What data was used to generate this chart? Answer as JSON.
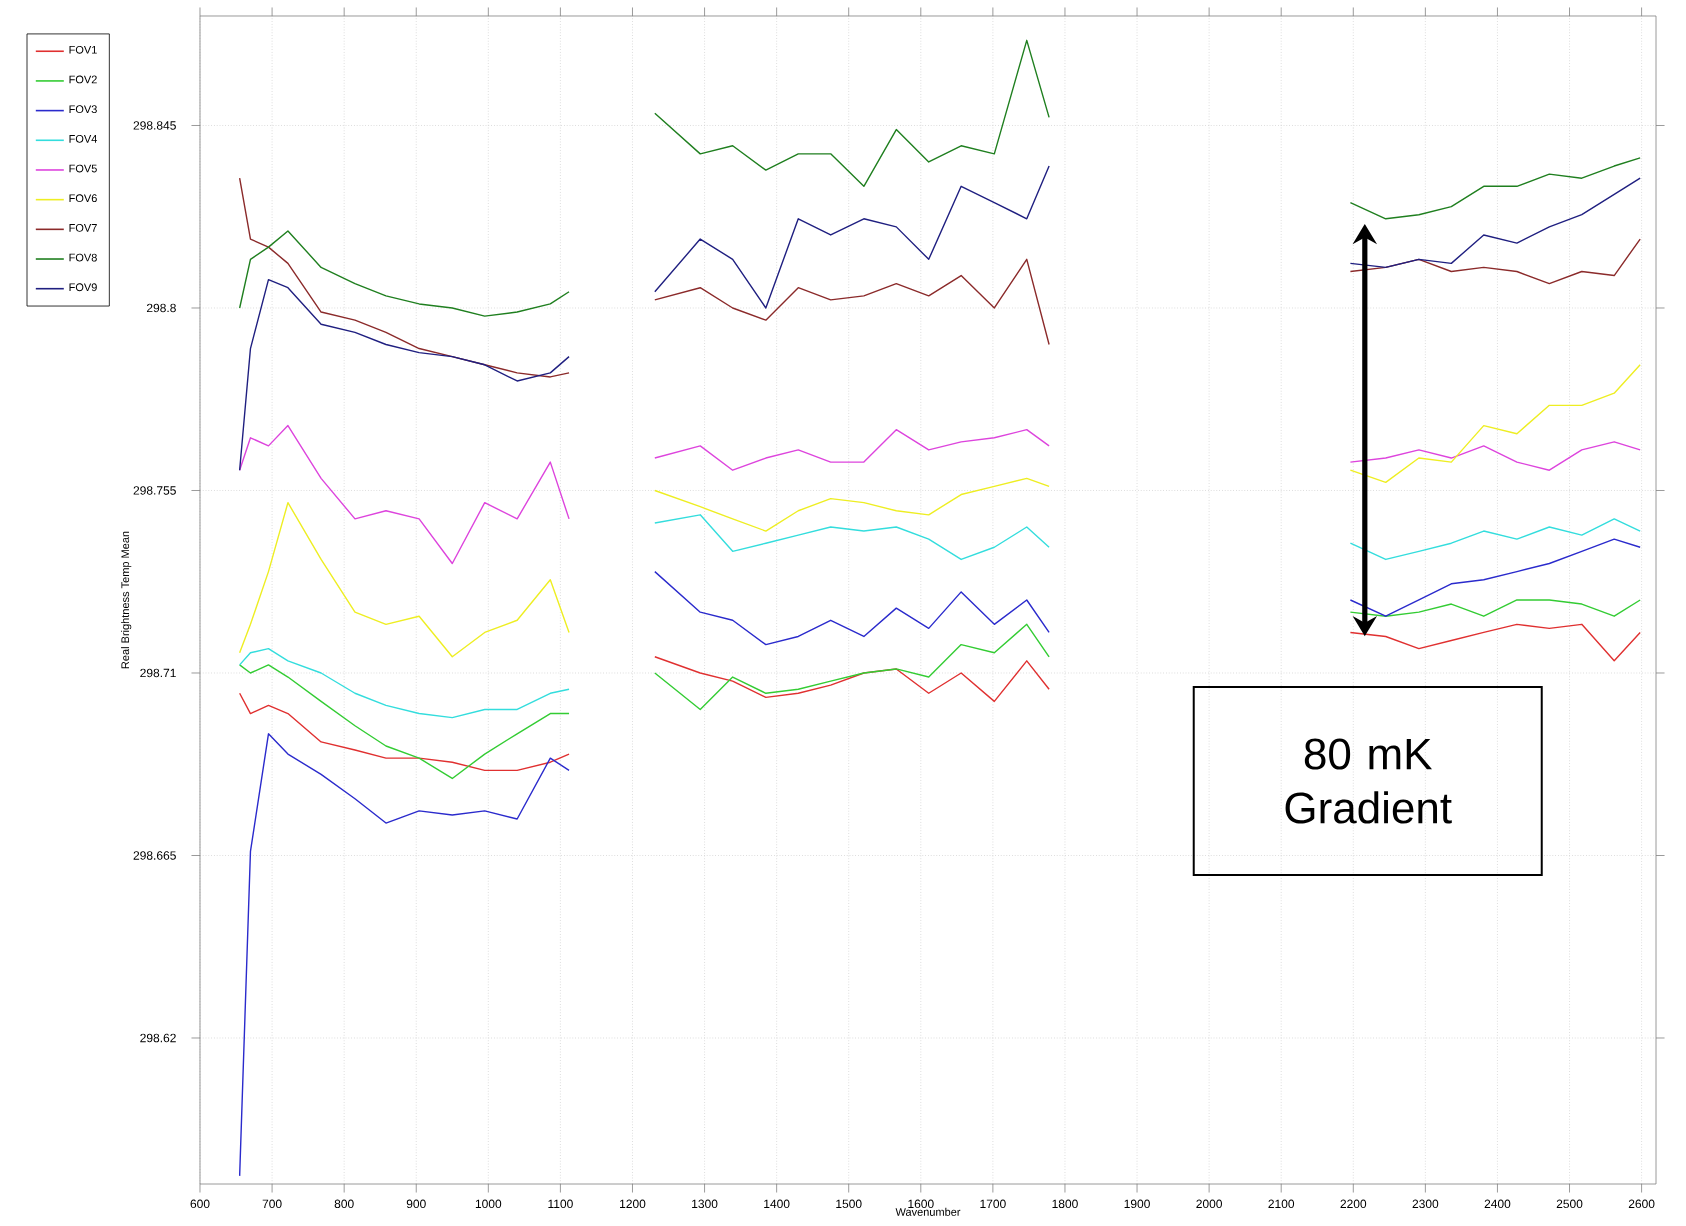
{
  "chart_data": {
    "type": "line",
    "xlabel": "Wavenumber",
    "ylabel": "Real Brightness Temp Mean",
    "x": [
      655,
      670,
      695,
      722,
      768,
      815,
      858,
      904,
      950,
      995,
      1040,
      1086,
      1112,
      1170,
      1231,
      1294,
      1339,
      1385,
      1430,
      1475,
      1521,
      1566,
      1611,
      1656,
      1702,
      1747,
      1778,
      1990,
      2196,
      2245,
      2291,
      2336,
      2381,
      2427,
      2472,
      2517,
      2562,
      2598
    ],
    "series": [
      {
        "name": "FOV1",
        "color": "#e03030",
        "values": [
          298.705,
          298.7,
          298.702,
          298.7,
          298.693,
          298.691,
          298.689,
          298.689,
          298.688,
          298.686,
          298.686,
          298.688,
          298.69,
          null,
          298.714,
          298.71,
          298.708,
          298.704,
          298.705,
          298.707,
          298.71,
          298.711,
          298.705,
          298.71,
          298.703,
          298.713,
          298.706,
          null,
          298.72,
          298.719,
          298.716,
          298.718,
          298.72,
          298.722,
          298.721,
          298.722,
          298.713,
          298.72
        ]
      },
      {
        "name": "FOV2",
        "color": "#33cc33",
        "values": [
          298.712,
          298.71,
          298.712,
          298.709,
          298.703,
          298.697,
          298.692,
          298.689,
          298.684,
          298.69,
          298.695,
          298.7,
          298.7,
          null,
          298.71,
          298.701,
          298.709,
          298.705,
          298.706,
          298.708,
          298.71,
          298.711,
          298.709,
          298.717,
          298.715,
          298.722,
          298.714,
          null,
          298.725,
          298.724,
          298.725,
          298.727,
          298.724,
          298.728,
          298.728,
          298.727,
          298.724,
          298.728
        ]
      },
      {
        "name": "FOV3",
        "color": "#2a2acc",
        "values": [
          298.586,
          298.666,
          298.695,
          298.69,
          298.685,
          298.679,
          298.673,
          298.676,
          298.675,
          298.676,
          298.674,
          298.689,
          298.686,
          null,
          298.735,
          298.725,
          298.723,
          298.717,
          298.719,
          298.723,
          298.719,
          298.726,
          298.721,
          298.73,
          298.722,
          298.728,
          298.72,
          null,
          298.728,
          298.724,
          298.728,
          298.732,
          298.733,
          298.735,
          298.737,
          298.74,
          298.743,
          298.741
        ]
      },
      {
        "name": "FOV4",
        "color": "#33dddd",
        "values": [
          298.712,
          298.715,
          298.716,
          298.713,
          298.71,
          298.705,
          298.702,
          298.7,
          298.699,
          298.701,
          298.701,
          298.705,
          298.706,
          null,
          298.747,
          298.749,
          298.74,
          298.742,
          298.744,
          298.746,
          298.745,
          298.746,
          298.743,
          298.738,
          298.741,
          298.746,
          298.741,
          null,
          298.742,
          298.738,
          298.74,
          298.742,
          298.745,
          298.743,
          298.746,
          298.744,
          298.748,
          298.745
        ]
      },
      {
        "name": "FOV5",
        "color": "#dd44dd",
        "values": [
          298.76,
          298.768,
          298.766,
          298.771,
          298.758,
          298.748,
          298.75,
          298.748,
          298.737,
          298.752,
          298.748,
          298.762,
          298.748,
          null,
          298.763,
          298.766,
          298.76,
          298.763,
          298.765,
          298.762,
          298.762,
          298.77,
          298.765,
          298.767,
          298.768,
          298.77,
          298.766,
          null,
          298.762,
          298.763,
          298.765,
          298.763,
          298.766,
          298.762,
          298.76,
          298.765,
          298.767,
          298.765
        ]
      },
      {
        "name": "FOV6",
        "color": "#eeee22",
        "values": [
          298.715,
          298.722,
          298.735,
          298.752,
          298.738,
          298.725,
          298.722,
          298.724,
          298.714,
          298.72,
          298.723,
          298.733,
          298.72,
          null,
          298.755,
          298.751,
          298.748,
          298.745,
          298.75,
          298.753,
          298.752,
          298.75,
          298.749,
          298.754,
          298.756,
          298.758,
          298.756,
          null,
          298.76,
          298.757,
          298.763,
          298.762,
          298.771,
          298.769,
          298.776,
          298.776,
          298.779,
          298.786
        ]
      },
      {
        "name": "FOV7",
        "color": "#8b2a2a",
        "values": [
          298.832,
          298.817,
          298.815,
          298.811,
          298.799,
          298.797,
          298.794,
          298.79,
          298.788,
          298.786,
          298.784,
          298.783,
          298.784,
          null,
          298.802,
          298.805,
          298.8,
          298.797,
          298.805,
          298.802,
          298.803,
          298.806,
          298.803,
          298.808,
          298.8,
          298.812,
          298.791,
          null,
          298.809,
          298.81,
          298.812,
          298.809,
          298.81,
          298.809,
          298.806,
          298.809,
          298.808,
          298.817
        ]
      },
      {
        "name": "FOV8",
        "color": "#1f7f1f",
        "values": [
          298.8,
          298.812,
          298.815,
          298.819,
          298.81,
          298.806,
          298.803,
          298.801,
          298.8,
          298.798,
          298.799,
          298.801,
          298.804,
          null,
          298.848,
          298.838,
          298.84,
          298.834,
          298.838,
          298.838,
          298.83,
          298.844,
          298.836,
          298.84,
          298.838,
          298.866,
          298.847,
          null,
          298.826,
          298.822,
          298.823,
          298.825,
          298.83,
          298.83,
          298.833,
          298.832,
          298.835,
          298.837
        ]
      },
      {
        "name": "FOV9",
        "color": "#1f1f80",
        "values": [
          298.76,
          298.79,
          298.807,
          298.805,
          298.796,
          298.794,
          298.791,
          298.789,
          298.788,
          298.786,
          298.782,
          298.784,
          298.788,
          null,
          298.804,
          298.817,
          298.812,
          298.8,
          298.822,
          298.818,
          298.822,
          298.82,
          298.812,
          298.83,
          298.826,
          298.822,
          298.835,
          null,
          298.811,
          298.81,
          298.812,
          298.811,
          298.818,
          298.816,
          298.82,
          298.823,
          298.828,
          298.832
        ]
      }
    ],
    "xlim": [
      600,
      2620
    ],
    "ylim": [
      298.584,
      298.872
    ],
    "xticks": [
      600,
      700,
      800,
      900,
      1000,
      1100,
      1200,
      1300,
      1400,
      1500,
      1600,
      1700,
      1800,
      1900,
      2000,
      2100,
      2200,
      2300,
      2400,
      2500,
      2600
    ],
    "yticks": [
      298.62,
      298.665,
      298.71,
      298.755,
      298.8,
      298.845
    ],
    "grid": true,
    "legend": "top left",
    "marker": "none",
    "line_style": "solid",
    "annotations": [
      "80 mK Gradient"
    ]
  }
}
